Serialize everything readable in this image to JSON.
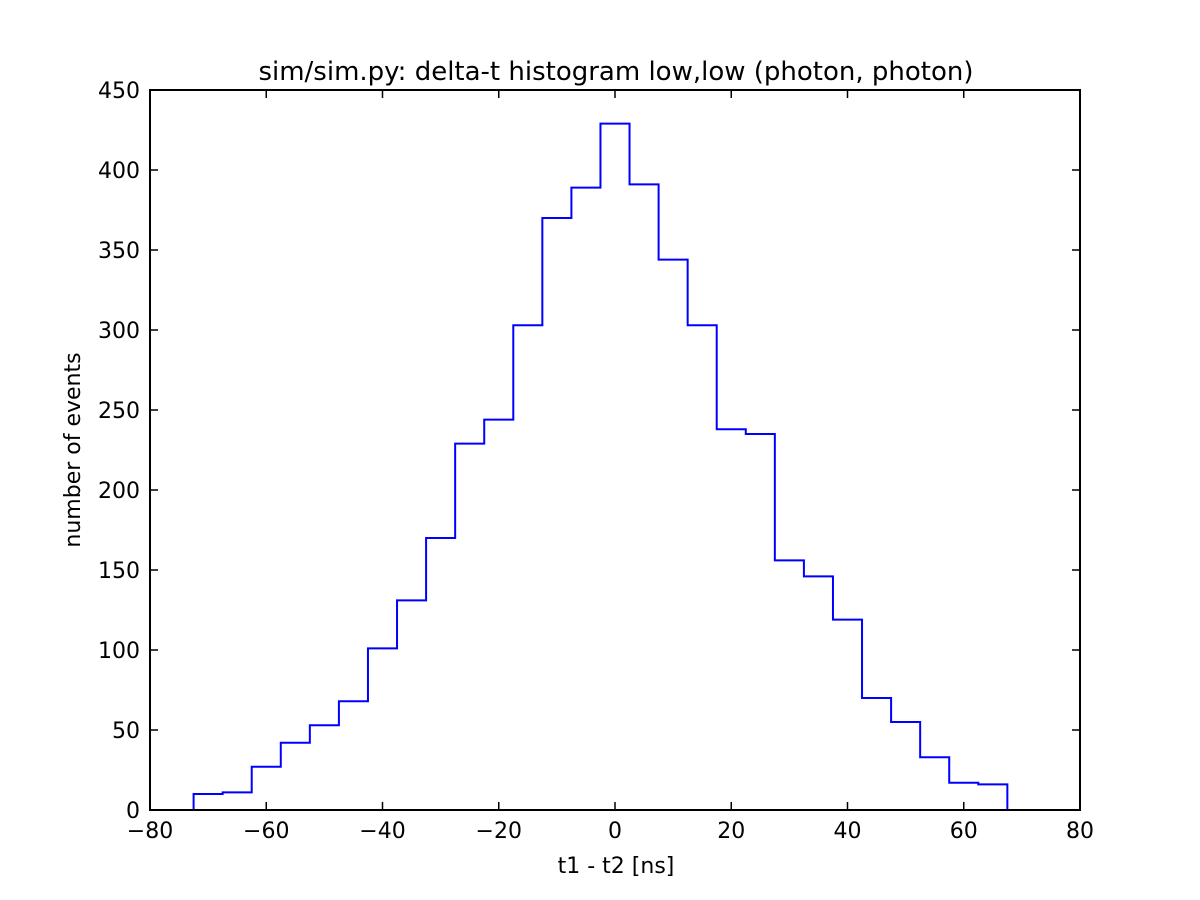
{
  "chart_data": {
    "type": "histogram",
    "title": "sim/sim.py: delta-t histogram low,low (photon, photon)",
    "xlabel": "t1 - t2 [ns]",
    "ylabel": "number of events",
    "xlim": [
      -80,
      80
    ],
    "ylim": [
      0,
      450
    ],
    "xticks": [
      -80,
      -60,
      -40,
      -20,
      0,
      20,
      40,
      60,
      80
    ],
    "yticks": [
      0,
      50,
      100,
      150,
      200,
      250,
      300,
      350,
      400,
      450
    ],
    "xtick_labels": [
      "−80",
      "−60",
      "−40",
      "−20",
      "0",
      "20",
      "40",
      "60",
      "80"
    ],
    "ytick_labels": [
      "0",
      "50",
      "100",
      "150",
      "200",
      "250",
      "300",
      "350",
      "400",
      "450"
    ],
    "grid": false,
    "series": [
      {
        "color": "#0000ff",
        "bin_edges": [
          -72.5,
          -67.5,
          -62.5,
          -57.5,
          -52.5,
          -47.5,
          -42.5,
          -37.5,
          -32.5,
          -27.5,
          -22.5,
          -17.5,
          -12.5,
          -7.5,
          -2.5,
          2.5,
          7.5,
          12.5,
          17.5,
          22.5,
          27.5,
          32.5,
          37.5,
          42.5,
          47.5,
          52.5,
          57.5,
          62.5,
          67.5
        ],
        "counts": [
          10,
          11,
          27,
          42,
          53,
          68,
          101,
          131,
          170,
          229,
          244,
          303,
          370,
          389,
          429,
          391,
          344,
          303,
          238,
          235,
          156,
          146,
          119,
          70,
          55,
          33,
          17,
          16
        ]
      }
    ]
  }
}
